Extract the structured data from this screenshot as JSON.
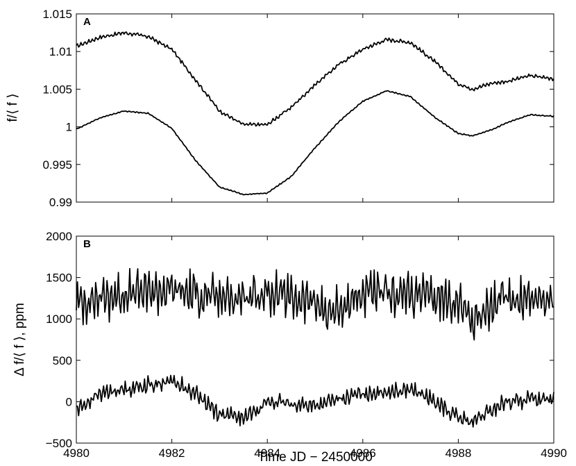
{
  "figure": {
    "xlabel": "Time JD − 2450000",
    "line_color": "#000000"
  },
  "chart_data": [
    {
      "type": "line",
      "panel_label": "A",
      "ylabel": "f/⟨ f ⟩",
      "xlim": [
        4980,
        4990
      ],
      "ylim": [
        0.99,
        1.015
      ],
      "xticks": [
        4980,
        4982,
        4984,
        4986,
        4988,
        4990
      ],
      "xtick_labels": [],
      "yticks": [
        0.99,
        0.995,
        1.0,
        1.005,
        1.01,
        1.015
      ],
      "ytick_labels": [
        "0.99",
        "0.995",
        "1",
        "1.005",
        "1.01",
        "1.015"
      ],
      "series": [
        {
          "x": [
            4980.0,
            4980.5,
            4981.0,
            4981.5,
            4982.0,
            4982.5,
            4983.0,
            4983.5,
            4984.0,
            4984.5,
            4985.0,
            4985.5,
            4986.0,
            4986.5,
            4987.0,
            4987.5,
            4988.0,
            4988.3,
            4988.7,
            4989.0,
            4989.5,
            4990.0
          ],
          "y": [
            1.0107,
            1.0119,
            1.0125,
            1.012,
            1.0103,
            1.0062,
            1.0021,
            1.0003,
            1.0003,
            1.0026,
            1.0056,
            1.0083,
            1.0103,
            1.0116,
            1.0112,
            1.0087,
            1.0057,
            1.005,
            1.0058,
            1.006,
            1.0068,
            1.0064
          ],
          "ripple": 0.0003
        },
        {
          "x": [
            4980.0,
            4980.5,
            4981.0,
            4981.5,
            4982.0,
            4982.5,
            4983.0,
            4983.5,
            4984.0,
            4984.5,
            4985.0,
            4985.5,
            4986.0,
            4986.5,
            4987.0,
            4987.5,
            4988.0,
            4988.3,
            4988.7,
            4989.0,
            4989.5,
            4990.0
          ],
          "y": [
            0.9997,
            1.0012,
            1.0021,
            1.0018,
            0.9998,
            0.9955,
            0.992,
            0.991,
            0.9912,
            0.9934,
            0.9972,
            1.0007,
            1.0034,
            1.0048,
            1.004,
            1.0013,
            0.9991,
            0.9988,
            0.9996,
            1.0005,
            1.0016,
            1.0014
          ],
          "ripple": 0.0001
        }
      ]
    },
    {
      "type": "line",
      "panel_label": "B",
      "ylabel": "Δ f/⟨ f ⟩, ppm",
      "xlim": [
        4980,
        4990
      ],
      "ylim": [
        -500,
        2000
      ],
      "xticks": [
        4980,
        4982,
        4984,
        4986,
        4988,
        4990
      ],
      "xtick_labels": [
        "4980",
        "4982",
        "4984",
        "4986",
        "4988",
        "4990"
      ],
      "yticks": [
        -500,
        0,
        500,
        1000,
        1500,
        2000
      ],
      "ytick_labels": [
        "−500",
        "0",
        "500",
        "1000",
        "1500",
        "2000"
      ],
      "series": [
        {
          "x": [
            4980.0,
            4981.0,
            4982.0,
            4983.0,
            4984.0,
            4985.0,
            4985.3,
            4986.0,
            4987.0,
            4988.0,
            4988.3,
            4989.0,
            4990.0
          ],
          "y": [
            1200,
            1300,
            1350,
            1250,
            1300,
            1200,
            1050,
            1300,
            1300,
            1200,
            1000,
            1250,
            1250
          ],
          "ripple": 320
        },
        {
          "x": [
            4980.0,
            4980.5,
            4981.0,
            4982.0,
            4982.5,
            4983.0,
            4983.5,
            4984.0,
            4985.0,
            4986.0,
            4987.0,
            4987.5,
            4988.0,
            4988.3,
            4989.0,
            4990.0
          ],
          "y": [
            -100,
            100,
            150,
            250,
            100,
            -150,
            -200,
            0,
            -50,
            100,
            150,
            0,
            -200,
            -250,
            0,
            50
          ],
          "ripple": 120
        }
      ]
    }
  ]
}
